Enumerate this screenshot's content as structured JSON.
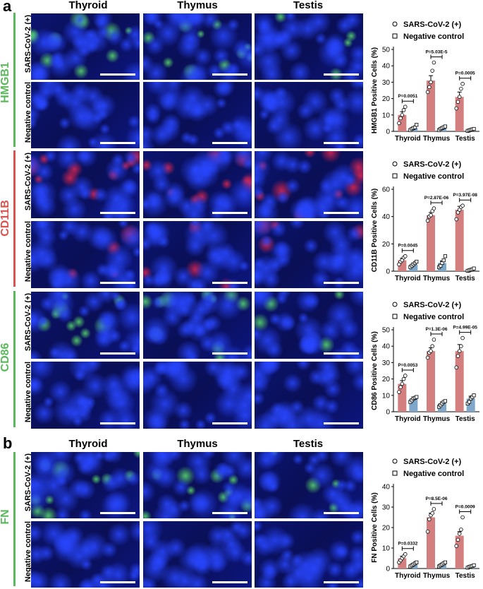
{
  "panels": [
    {
      "letter": "a",
      "columns": [
        "Thyroid",
        "Thymus",
        "Testis"
      ],
      "markers": [
        {
          "name": "HMGB1",
          "color": "#5cb85c",
          "rows": [
            "SARS-CoV-2 (+)",
            "Negative control"
          ]
        },
        {
          "name": "CD11B",
          "color": "#d9534f",
          "rows": [
            "SARS-CoV-2 (+)",
            "Negative control"
          ]
        },
        {
          "name": "CD86",
          "color": "#5cb85c",
          "rows": [
            "SARS-CoV-2 (+)",
            "Negative control"
          ]
        }
      ]
    },
    {
      "letter": "b",
      "columns": [
        "Thyroid",
        "Thymus",
        "Testis"
      ],
      "markers": [
        {
          "name": "FN",
          "color": "#5cb85c",
          "rows": [
            "SARS-CoV-2 (+)",
            "Negative control"
          ]
        }
      ]
    }
  ],
  "colors": {
    "positive_bar": "#d47f7f",
    "negative_bar": "#7ea7c9",
    "dapi_blue": "#1a2fd6",
    "green_signal": "#4fd06a",
    "red_signal": "#e8304f"
  },
  "chart_data": [
    {
      "type": "bar",
      "ylabel": "HMGB1 Positive Cells (%)",
      "categories": [
        "Thyroid",
        "Thymus",
        "Testis"
      ],
      "ylim": [
        0,
        50
      ],
      "yticks": [
        0,
        10,
        20,
        30,
        40,
        50
      ],
      "legend": [
        "SARS-CoV-2 (+)",
        "Negative control"
      ],
      "series": [
        {
          "name": "SARS-CoV-2 (+)",
          "values": [
            10,
            31,
            21
          ],
          "errors": [
            2,
            3,
            3
          ],
          "points": [
            [
              5,
              8,
              10,
              13,
              15
            ],
            [
              24,
              27,
              30,
              37,
              42
            ],
            [
              14,
              18,
              21,
              26,
              29
            ]
          ]
        },
        {
          "name": "Negative control",
          "values": [
            2,
            2,
            1
          ],
          "errors": [
            0.6,
            0.6,
            0.4
          ],
          "points": [
            [
              0.8,
              1.5,
              2,
              2.5,
              4
            ],
            [
              0.8,
              1.5,
              2,
              2.5,
              3
            ],
            [
              0.3,
              0.6,
              0.9,
              1.2,
              1.5
            ]
          ]
        }
      ],
      "pvalues": [
        "P=0.0051",
        "P=5.03E-5",
        "P=0.0005"
      ]
    },
    {
      "type": "bar",
      "ylabel": "CD11B Positive Cells (%)",
      "categories": [
        "Thyroid",
        "Thymus",
        "Testis"
      ],
      "ylim": [
        0,
        60
      ],
      "yticks": [
        0,
        20,
        40,
        60
      ],
      "legend": [
        "SARS-CoV-2 (+)",
        "Negative control"
      ],
      "series": [
        {
          "name": "SARS-CoV-2 (+)",
          "values": [
            8,
            41,
            45
          ],
          "errors": [
            1.5,
            2,
            2.5
          ],
          "points": [
            [
              5,
              7,
              8,
              10,
              11
            ],
            [
              37,
              40,
              41,
              44,
              46
            ],
            [
              38,
              43,
              45,
              47,
              48
            ]
          ]
        },
        {
          "name": "Negative control",
          "values": [
            5,
            6,
            1
          ],
          "errors": [
            1,
            1.5,
            0.4
          ],
          "points": [
            [
              3,
              4,
              5,
              6,
              7
            ],
            [
              3,
              4,
              6,
              8,
              11
            ],
            [
              0.3,
              0.6,
              1,
              1.3,
              2
            ]
          ]
        }
      ],
      "pvalues": [
        "P=0.0045",
        "P=2.87E-06",
        "P=3.97E-08"
      ]
    },
    {
      "type": "bar",
      "ylabel": "CD86 Positive Cells (%)",
      "categories": [
        "Thyroid",
        "Thymus",
        "Testis"
      ],
      "ylim": [
        0,
        50
      ],
      "yticks": [
        0,
        10,
        20,
        30,
        40,
        50
      ],
      "legend": [
        "SARS-CoV-2 (+)",
        "Negative control"
      ],
      "series": [
        {
          "name": "SARS-CoV-2 (+)",
          "values": [
            17,
            37,
            37
          ],
          "errors": [
            2,
            2,
            4
          ],
          "points": [
            [
              12,
              15,
              17,
              20,
              22
            ],
            [
              33,
              36,
              37,
              40,
              44
            ],
            [
              27,
              34,
              37,
              40,
              45
            ]
          ]
        },
        {
          "name": "Negative control",
          "values": [
            8,
            5,
            8
          ],
          "errors": [
            1,
            1,
            1.5
          ],
          "points": [
            [
              6,
              7,
              8,
              8.5,
              9
            ],
            [
              3,
              4,
              5,
              6,
              6.5
            ],
            [
              5,
              6,
              8,
              9,
              10
            ]
          ]
        }
      ],
      "pvalues": [
        "P=0.0053",
        "P=1.3E-06",
        "P=4.99E-05"
      ]
    },
    {
      "type": "bar",
      "ylabel": "FN Positive Cells (%)",
      "categories": [
        "Thyroid",
        "Thymus",
        "Testis"
      ],
      "ylim": [
        0,
        40
      ],
      "yticks": [
        0,
        10,
        20,
        30,
        40
      ],
      "legend": [
        "SARS-CoV-2 (+)",
        "Negative control"
      ],
      "series": [
        {
          "name": "SARS-CoV-2 (+)",
          "values": [
            5,
            25,
            16
          ],
          "errors": [
            1,
            2,
            2
          ],
          "points": [
            [
              3,
              4,
              5,
              6,
              7
            ],
            [
              18,
              24,
              26,
              27,
              29
            ],
            [
              11,
              14,
              17,
              19,
              25
            ]
          ]
        },
        {
          "name": "Negative control",
          "values": [
            2,
            2,
            1
          ],
          "errors": [
            0.5,
            0.5,
            0.4
          ],
          "points": [
            [
              1,
              1.5,
              2,
              2.5,
              3
            ],
            [
              1,
              1.5,
              2,
              2.5,
              3
            ],
            [
              0.4,
              0.8,
              1,
              1.2,
              1.6
            ]
          ]
        }
      ],
      "pvalues": [
        "P=0.0332",
        "P=8.5E-06",
        "P=0.0009"
      ]
    }
  ]
}
